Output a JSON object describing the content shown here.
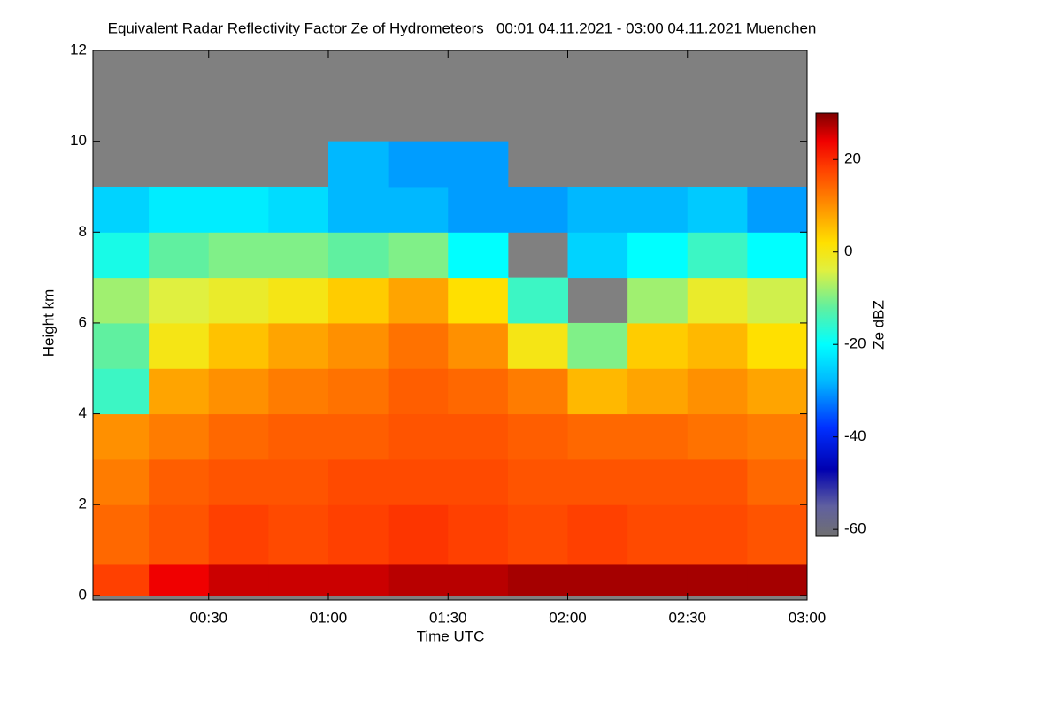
{
  "chart_data": {
    "type": "heatmap",
    "title": "Equivalent Radar Reflectivity Factor Ze of Hydrometeors   00:01 04.11.2021 - 03:00 04.11.2021 Muenchen",
    "x_label": "Time UTC",
    "y_label": "Height km",
    "colorbar_label": "Ze dBZ",
    "x_edges": [
      1,
      15,
      30,
      45,
      60,
      75,
      90,
      105,
      120,
      135,
      150,
      165,
      180
    ],
    "y_edges": [
      0,
      0.7,
      2,
      3,
      4,
      5,
      6,
      7,
      8,
      9,
      10
    ],
    "z": [
      [
        18,
        24,
        26,
        26,
        26,
        27,
        27,
        28,
        28,
        28,
        28,
        28
      ],
      [
        14,
        16,
        18,
        17,
        18,
        19,
        18,
        17,
        18,
        17,
        17,
        16
      ],
      [
        12,
        15,
        16,
        16,
        17,
        17,
        17,
        16,
        16,
        16,
        16,
        14
      ],
      [
        10,
        12,
        14,
        15,
        15,
        16,
        16,
        15,
        14,
        14,
        13,
        12
      ],
      [
        -15,
        8,
        10,
        12,
        13,
        15,
        14,
        12,
        6,
        8,
        10,
        8
      ],
      [
        -12,
        0,
        5,
        8,
        10,
        13,
        10,
        0,
        -10,
        4,
        6,
        2
      ],
      [
        -8,
        -4,
        -2,
        0,
        4,
        8,
        2,
        -15,
        null,
        -8,
        -2,
        -5
      ],
      [
        -18,
        -12,
        -10,
        -10,
        -12,
        -10,
        -20,
        null,
        -25,
        -20,
        -15,
        -20
      ],
      [
        -25,
        -22,
        -22,
        -24,
        -28,
        -28,
        -30,
        -30,
        -28,
        -28,
        -26,
        -30
      ],
      [
        null,
        null,
        null,
        null,
        -28,
        -30,
        -30,
        null,
        null,
        null,
        null,
        null
      ]
    ],
    "xlim": [
      1,
      180
    ],
    "ylim": [
      -0.1,
      12
    ],
    "xticks": [
      {
        "value": 30,
        "label": "00:30"
      },
      {
        "value": 60,
        "label": "01:00"
      },
      {
        "value": 90,
        "label": "01:30"
      },
      {
        "value": 120,
        "label": "02:00"
      },
      {
        "value": 150,
        "label": "02:30"
      },
      {
        "value": 180,
        "label": "03:00"
      }
    ],
    "yticks": [
      0,
      2,
      4,
      6,
      8,
      10,
      12
    ],
    "clim": [
      -61.5,
      30
    ],
    "cticks": [
      -60,
      -40,
      -20,
      0,
      20
    ],
    "missing_color": "#808080",
    "colormap": [
      {
        "value": -61.5,
        "color": "#707070"
      },
      {
        "value": -55,
        "color": "#6060a0"
      },
      {
        "value": -47,
        "color": "#0000b0"
      },
      {
        "value": -38,
        "color": "#0030ff"
      },
      {
        "value": -28,
        "color": "#00b8ff"
      },
      {
        "value": -20,
        "color": "#00ffff"
      },
      {
        "value": -12,
        "color": "#60f0a0"
      },
      {
        "value": -4,
        "color": "#e0f040"
      },
      {
        "value": 2,
        "color": "#ffe000"
      },
      {
        "value": 10,
        "color": "#ff9000"
      },
      {
        "value": 18,
        "color": "#ff4000"
      },
      {
        "value": 24,
        "color": "#f00000"
      },
      {
        "value": 30,
        "color": "#800000"
      }
    ]
  }
}
